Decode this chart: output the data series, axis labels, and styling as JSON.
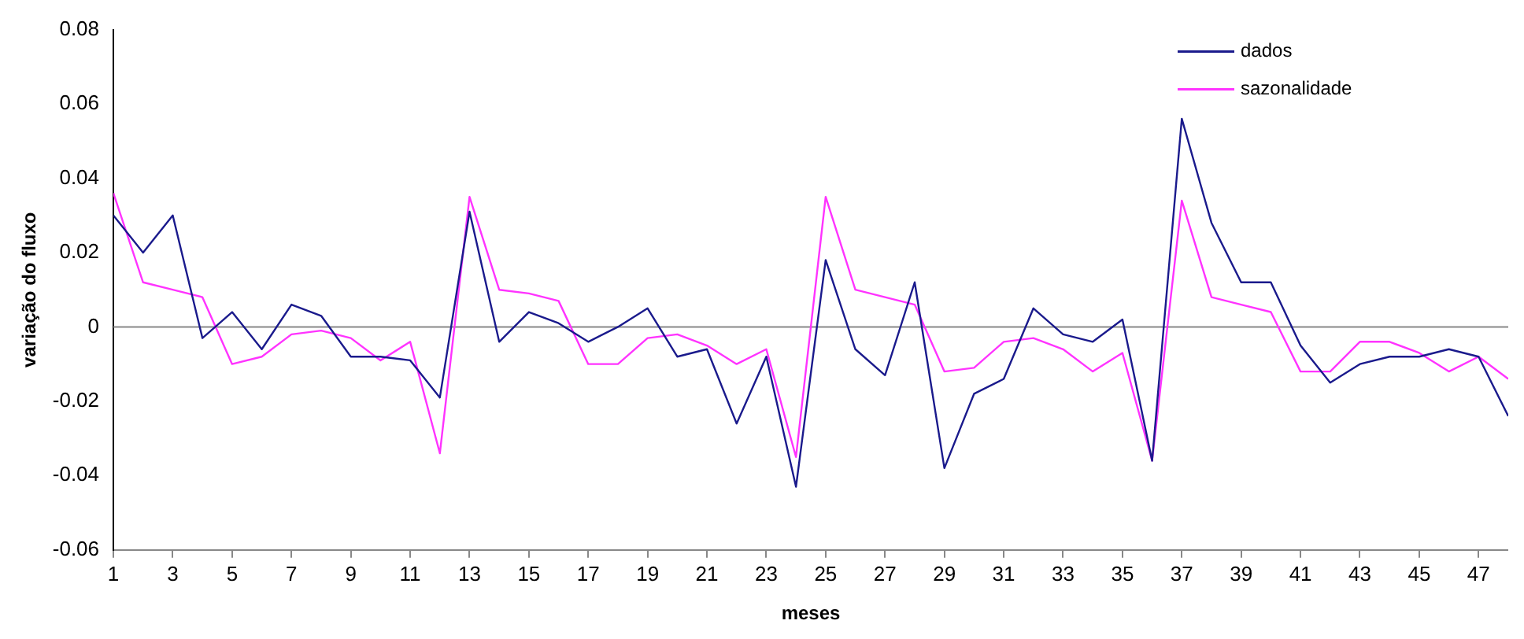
{
  "chart_data": {
    "type": "line",
    "xlabel": "meses",
    "ylabel": "variação do fluxo",
    "x": [
      1,
      2,
      3,
      4,
      5,
      6,
      7,
      8,
      9,
      10,
      11,
      12,
      13,
      14,
      15,
      16,
      17,
      18,
      19,
      20,
      21,
      22,
      23,
      24,
      25,
      26,
      27,
      28,
      29,
      30,
      31,
      32,
      33,
      34,
      35,
      36,
      37,
      38,
      39,
      40,
      41,
      42,
      43,
      44,
      45,
      46,
      47,
      48
    ],
    "series": [
      {
        "name": "dados",
        "color": "#1a1a8c",
        "values": [
          0.03,
          0.02,
          0.03,
          -0.003,
          0.004,
          -0.006,
          0.006,
          0.003,
          -0.008,
          -0.008,
          -0.009,
          -0.019,
          0.031,
          -0.004,
          0.004,
          0.001,
          -0.004,
          0.0,
          0.005,
          -0.008,
          -0.006,
          -0.026,
          -0.008,
          -0.043,
          0.018,
          -0.006,
          -0.013,
          0.012,
          -0.038,
          -0.018,
          -0.014,
          0.005,
          -0.002,
          -0.004,
          0.002,
          -0.036,
          0.056,
          0.028,
          0.012,
          0.012,
          -0.005,
          -0.015,
          -0.01,
          -0.008,
          -0.008,
          -0.006,
          -0.008,
          -0.024
        ]
      },
      {
        "name": "sazonalidade",
        "color": "#ff33ff",
        "values": [
          0.036,
          0.012,
          0.01,
          0.008,
          -0.01,
          -0.008,
          -0.002,
          -0.001,
          -0.003,
          -0.009,
          -0.004,
          -0.034,
          0.035,
          0.01,
          0.009,
          0.007,
          -0.01,
          -0.01,
          -0.003,
          -0.002,
          -0.005,
          -0.01,
          -0.006,
          -0.035,
          0.035,
          0.01,
          0.008,
          0.006,
          -0.012,
          -0.011,
          -0.004,
          -0.003,
          -0.006,
          -0.012,
          -0.007,
          -0.036,
          0.034,
          0.008,
          0.006,
          0.004,
          -0.012,
          -0.012,
          -0.004,
          -0.004,
          -0.007,
          -0.012,
          -0.008,
          -0.014
        ]
      }
    ],
    "xlim": [
      1,
      48
    ],
    "xticks": [
      1,
      3,
      5,
      7,
      9,
      11,
      13,
      15,
      17,
      19,
      21,
      23,
      25,
      27,
      29,
      31,
      33,
      35,
      37,
      39,
      41,
      43,
      45,
      47
    ],
    "ylim": [
      -0.06,
      0.08
    ],
    "yticks": [
      -0.06,
      -0.04,
      -0.02,
      0,
      0.02,
      0.04,
      0.06,
      0.08
    ],
    "ref_lines": [
      {
        "axis": "y",
        "value": 0,
        "color": "#888888"
      }
    ],
    "grid": false,
    "legend": "top right",
    "marker": "none",
    "line_style": "solid"
  }
}
